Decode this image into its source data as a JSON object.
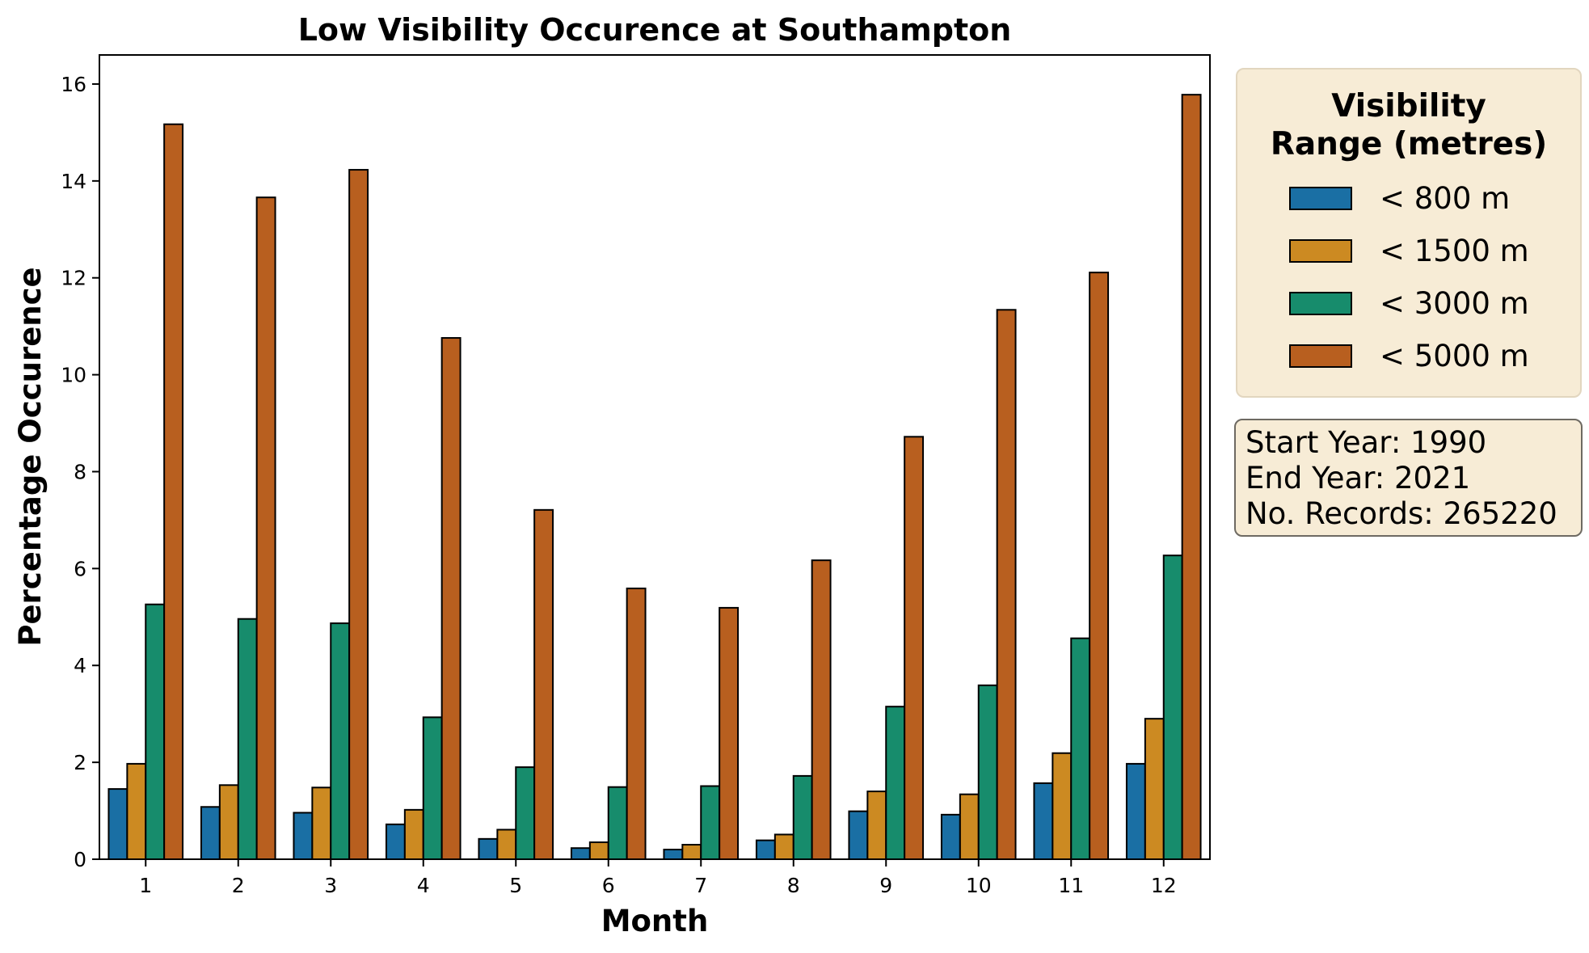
{
  "chart_data": {
    "type": "bar",
    "title": "Low Visibility Occurence at Southampton",
    "xlabel": "Month",
    "ylabel": "Percentage Occurence",
    "categories": [
      "1",
      "2",
      "3",
      "4",
      "5",
      "6",
      "7",
      "8",
      "9",
      "10",
      "11",
      "12"
    ],
    "ylim": [
      0,
      16.6
    ],
    "yticks": [
      0,
      2,
      4,
      6,
      8,
      10,
      12,
      14,
      16
    ],
    "grid": false,
    "legend_title": "Visibility\nRange (metres)",
    "legend_position": "outside-right-top",
    "series": [
      {
        "name": "< 800 m",
        "color": "#1a6fa4",
        "values": [
          1.45,
          1.08,
          0.96,
          0.72,
          0.42,
          0.23,
          0.2,
          0.39,
          0.99,
          0.92,
          1.57,
          1.97
        ]
      },
      {
        "name": "< 1500 m",
        "color": "#cc8a22",
        "values": [
          1.97,
          1.53,
          1.48,
          1.02,
          0.61,
          0.35,
          0.3,
          0.51,
          1.4,
          1.34,
          2.19,
          2.9
        ]
      },
      {
        "name": "< 3000 m",
        "color": "#178c6c",
        "values": [
          5.26,
          4.96,
          4.87,
          2.93,
          1.9,
          1.49,
          1.51,
          1.72,
          3.15,
          3.59,
          4.56,
          6.27
        ]
      },
      {
        "name": "< 5000 m",
        "color": "#b85f1f",
        "values": [
          15.17,
          13.66,
          14.23,
          10.76,
          7.21,
          5.59,
          5.19,
          6.17,
          8.72,
          11.34,
          12.11,
          15.78
        ]
      }
    ]
  },
  "legend": {
    "title_line1": "Visibility",
    "title_line2": "Range (metres)"
  },
  "info": {
    "start_year": "Start Year: 1990",
    "end_year": "End Year: 2021",
    "records": "No. Records: 265220"
  }
}
